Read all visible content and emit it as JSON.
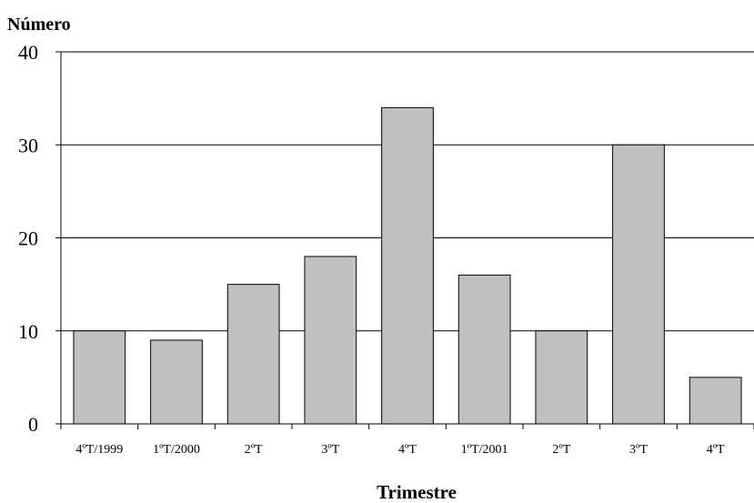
{
  "chart_data": {
    "type": "bar",
    "ylabel": "Número",
    "xlabel": "Trimestre",
    "categories": [
      "4ºT/1999",
      "1ºT/2000",
      "2ºT",
      "3ºT",
      "4ºT",
      "1ºT/2001",
      "2ºT",
      "3ºT",
      "4ºT"
    ],
    "values": [
      10,
      9,
      15,
      18,
      34,
      16,
      10,
      30,
      5
    ],
    "ylim": [
      0,
      40
    ],
    "yticks": [
      "0",
      "10",
      "20",
      "30",
      "40"
    ],
    "grid": true,
    "colors": {
      "bar": "#c0c0c0",
      "stroke": "#000000"
    }
  }
}
